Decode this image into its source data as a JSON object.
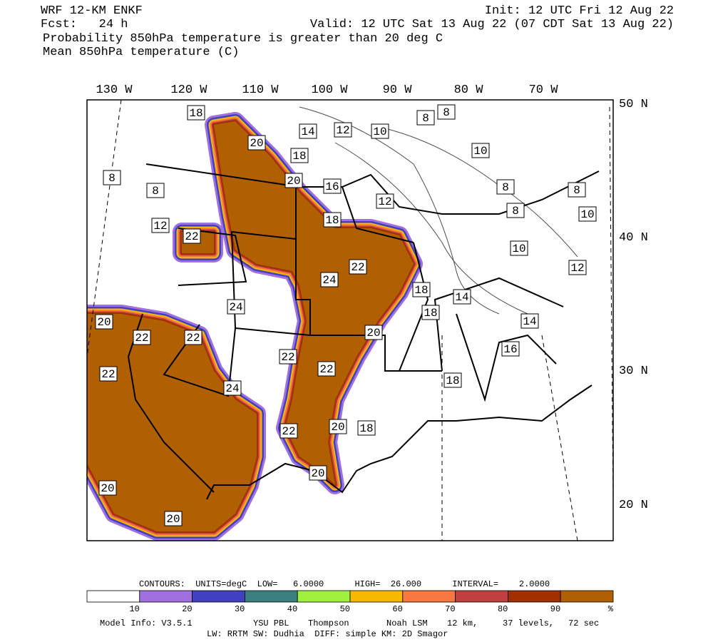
{
  "header": {
    "model": "WRF 12-KM ENKF",
    "fcst": "Fcst:   24 h",
    "init": "Init: 12 UTC Fri 12 Aug 22",
    "valid": "Valid: 12 UTC Sat 13 Aug 22 (07 CDT Sat 13 Aug 22)",
    "line3": "Probability 850hPa temperature is greater than 20 deg C",
    "line4": "Mean 850hPa temperature (C)"
  },
  "lon_labels": [
    "130 W",
    "120 W",
    "110 W",
    "100 W",
    "90 W",
    "80 W",
    "70 W"
  ],
  "lat_labels": [
    "50 N",
    "40 N",
    "30 N",
    "20 N"
  ],
  "contour_labels": [
    "18",
    "20",
    "18",
    "14",
    "12",
    "10",
    "8",
    "8",
    "10",
    "8",
    "8",
    "20",
    "16",
    "12",
    "8",
    "8",
    "8",
    "10",
    "12",
    "22",
    "18",
    "10",
    "12",
    "22",
    "24",
    "18",
    "14",
    "24",
    "18",
    "14",
    "20",
    "22",
    "22",
    "20",
    "16",
    "22",
    "22",
    "22",
    "18",
    "24",
    "20",
    "18",
    "22",
    "20",
    "20",
    "20"
  ],
  "footer": {
    "contours": "CONTOURS:  UNITS=degC  LOW=   6.0000      HIGH=  26.000      INTERVAL=    2.0000",
    "colorbar": {
      "colors": [
        "#ffffff",
        "#a070e0",
        "#4040c0",
        "#3a8080",
        "#a0f040",
        "#f8b800",
        "#f87840",
        "#c04040",
        "#a03000",
        "#b06000"
      ],
      "labels": [
        "10",
        "20",
        "30",
        "40",
        "50",
        "60",
        "70",
        "80",
        "90",
        "%"
      ]
    },
    "model_info": "Model Info: V3.5.1",
    "pbl": "YSU PBL",
    "mp": "Thompson",
    "lsm": "Noah LSM",
    "res": "12 km,",
    "levels": "37 levels,",
    "dt": "72 sec",
    "line2": "LW: RRTM SW: Dudhia  DIFF: simple KM: 2D Smagor"
  }
}
